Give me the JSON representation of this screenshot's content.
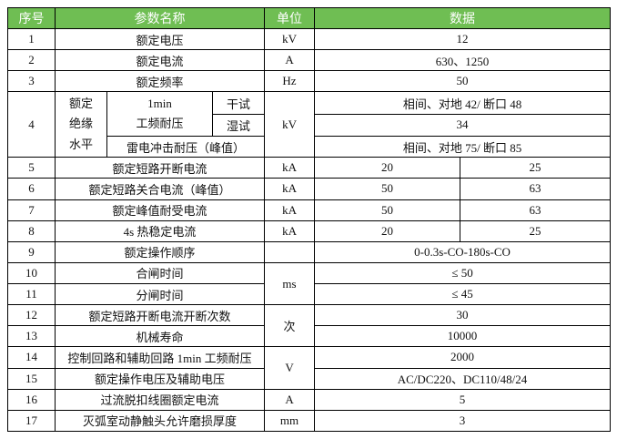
{
  "colors": {
    "header_bg": "#6FBE53",
    "header_text": "#FFFFFF",
    "border": "#000000",
    "page_bg": "#FFFFFF"
  },
  "table": {
    "headers": {
      "no": "序号",
      "param": "参数名称",
      "unit": "单位",
      "data": "数据"
    },
    "r1": {
      "no": "1",
      "param": "额定电压",
      "unit": "kV",
      "data": "12"
    },
    "r2": {
      "no": "2",
      "param": "额定电流",
      "unit": "A",
      "data": "630、1250"
    },
    "r3": {
      "no": "3",
      "param": "额定频率",
      "unit": "Hz",
      "data": "50"
    },
    "r4": {
      "no": "4",
      "group_lines": [
        "额定",
        "绝缘",
        "水平"
      ],
      "freq_lines": [
        "1min",
        "工频耐压"
      ],
      "dry": "干试",
      "wet": "湿试",
      "impulse": "雷电冲击耐压（峰值）",
      "unit": "kV",
      "data_dry": "相间、对地 42/ 断口 48",
      "data_wet": "34",
      "data_impulse": "相间、对地 75/ 断口 85"
    },
    "r5": {
      "no": "5",
      "param": "额定短路开断电流",
      "unit": "kA",
      "data_left": "20",
      "data_right": "25"
    },
    "r6": {
      "no": "6",
      "param": "额定短路关合电流（峰值）",
      "unit": "kA",
      "data_left": "50",
      "data_right": "63"
    },
    "r7": {
      "no": "7",
      "param": "额定峰值耐受电流",
      "unit": "kA",
      "data_left": "50",
      "data_right": "63"
    },
    "r8": {
      "no": "8",
      "param": "4s 热稳定电流",
      "unit": "kA",
      "data_left": "20",
      "data_right": "25"
    },
    "r9": {
      "no": "9",
      "param": "额定操作顺序",
      "unit": "",
      "data": "0-0.3s-CO-180s-CO"
    },
    "r10": {
      "no": "10",
      "param": "合闸时间",
      "unit": "ms",
      "data": "≤ 50"
    },
    "r11": {
      "no": "11",
      "param": "分闸时间",
      "data": "≤ 45"
    },
    "r12": {
      "no": "12",
      "param": "额定短路开断电流开断次数",
      "unit": "次",
      "data": "30"
    },
    "r13": {
      "no": "13",
      "param": "机械寿命",
      "data": "10000"
    },
    "r14": {
      "no": "14",
      "param": "控制回路和辅助回路 1min 工频耐压",
      "unit": "V",
      "data": "2000"
    },
    "r15": {
      "no": "15",
      "param": "额定操作电压及辅助电压",
      "data": "AC/DC220、DC110/48/24"
    },
    "r16": {
      "no": "16",
      "param": "过流脱扣线圈额定电流",
      "unit": "A",
      "data": "5"
    },
    "r17": {
      "no": "17",
      "param": "灭弧室动静触头允许磨损厚度",
      "unit": "mm",
      "data": "3"
    }
  }
}
